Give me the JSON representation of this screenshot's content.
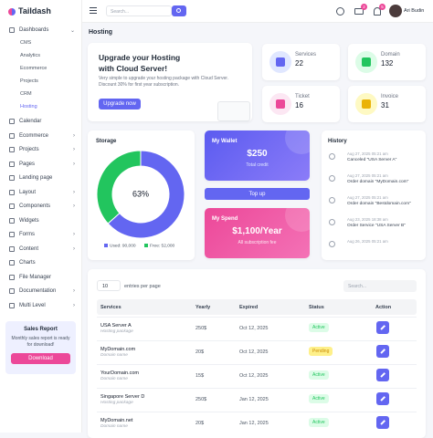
{
  "sidebar": {
    "logo": "Taildash",
    "menu": [
      {
        "label": "Dashboards",
        "children": [
          "CMS",
          "Analytics",
          "Ecommerce",
          "Projects",
          "CRM",
          "Hosting"
        ]
      },
      {
        "label": "Calendar"
      },
      {
        "label": "Ecommerce"
      },
      {
        "label": "Projects"
      },
      {
        "label": "Pages"
      },
      {
        "label": "Landing page"
      },
      {
        "label": "Layout"
      },
      {
        "label": "Components"
      },
      {
        "label": "Widgets"
      },
      {
        "label": "Forms"
      },
      {
        "label": "Content"
      },
      {
        "label": "Charts"
      },
      {
        "label": "File Manager"
      },
      {
        "label": "Documentation"
      },
      {
        "label": "Multi Level"
      }
    ],
    "sales_report": {
      "title": "Sales Report",
      "text": "Monthly sales report is ready for download!",
      "button": "Download"
    }
  },
  "header": {
    "search": "Search...",
    "mail_badge": "2",
    "bell_badge": "5",
    "user": "Ari Budin"
  },
  "page_title": "Hosting",
  "hero": {
    "title": "Upgrade your Hosting with Cloud Server!",
    "text": "Very simple to upgrade your hosting package with Cloud Server. Discount 30% for first year subscription.",
    "button": "Upgrade now"
  },
  "stats": [
    {
      "label": "Services",
      "value": "22",
      "color": "#6366f1",
      "bg": "#e0e7ff"
    },
    {
      "label": "Domain",
      "value": "132",
      "color": "#22c55e",
      "bg": "#dcfce7"
    },
    {
      "label": "Ticket",
      "value": "16",
      "color": "#ec4899",
      "bg": "#fce7f3"
    },
    {
      "label": "Invoice",
      "value": "31",
      "color": "#eab308",
      "bg": "#fef9c3"
    }
  ],
  "storage": {
    "title": "Storage",
    "center_label": "63%",
    "segments": [
      {
        "name": "Used",
        "value": 90000,
        "legend": "Used: 90,000",
        "color": "#6366f1"
      },
      {
        "name": "Free",
        "value": 52000,
        "legend": "Free: 52,000",
        "color": "#22c55e"
      }
    ]
  },
  "wallet": {
    "title": "My Wallet",
    "amount": "$250",
    "caption": "Total credit",
    "button": "Top up"
  },
  "spend": {
    "title": "My Spend",
    "amount": "$1,100/Year",
    "caption": "All subscription fee"
  },
  "history": {
    "title": "History",
    "items": [
      {
        "date": "Aug 27, 2025 05:21 am",
        "text": "Canceled \"USA Server A\""
      },
      {
        "date": "Aug 27, 2025 05:21 am",
        "text": "Order domain \"MyDomain.com\""
      },
      {
        "date": "Aug 27, 2025 05:21 am",
        "text": "Order domain \"Bestdomain.com\""
      },
      {
        "date": "Aug 23, 2025 18:38 am",
        "text": "Order Service \"USA Server B\""
      },
      {
        "date": "Aug 26, 2025 05:21 am"
      }
    ]
  },
  "table": {
    "page_size": "10",
    "page_size_label": "entries per page",
    "search": "Search...",
    "columns": [
      "Services",
      "Yearly",
      "Expired",
      "Status",
      "Action"
    ],
    "rows": [
      {
        "service": "USA Server A",
        "type": "Hosting package",
        "yearly": "250$",
        "expired": "Oct 12, 2025",
        "status": "Active",
        "status_color": "#22c55e",
        "status_bg": "#dcfce7"
      },
      {
        "service": "MyDomain.com",
        "type": "Domain name",
        "yearly": "20$",
        "expired": "Oct 12, 2025",
        "status": "Pending",
        "status_color": "#ca8a04",
        "status_bg": "#fef08a"
      },
      {
        "service": "YourDomain.com",
        "type": "Domain name",
        "yearly": "15$",
        "expired": "Oct 12, 2025",
        "status": "Active",
        "status_color": "#22c55e",
        "status_bg": "#dcfce7"
      },
      {
        "service": "Singapore Server D",
        "type": "Hosting package",
        "yearly": "250$",
        "expired": "Jan 12, 2025",
        "status": "Active",
        "status_color": "#22c55e",
        "status_bg": "#dcfce7"
      },
      {
        "service": "MyDomain.net",
        "type": "Domain name",
        "yearly": "20$",
        "expired": "Jan 12, 2025",
        "status": "Active",
        "status_color": "#22c55e",
        "status_bg": "#dcfce7"
      }
    ]
  }
}
